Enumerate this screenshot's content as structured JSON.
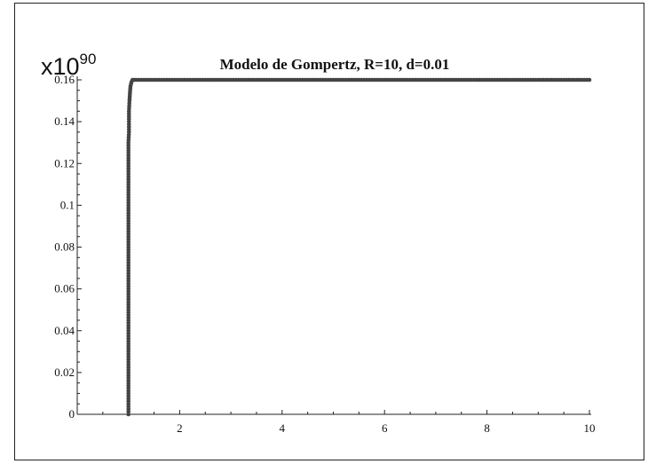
{
  "chart_data": {
    "type": "scatter",
    "title": "Modelo de Gompertz, R=10, d=0.01",
    "y_multiplier": {
      "base": "x10",
      "exponent": "90"
    },
    "xlim": [
      0,
      10
    ],
    "ylim": [
      0,
      0.16
    ],
    "x_ticks": [
      {
        "value": 2,
        "label": "2"
      },
      {
        "value": 4,
        "label": "4"
      },
      {
        "value": 6,
        "label": "6"
      },
      {
        "value": 8,
        "label": "8"
      },
      {
        "value": 10,
        "label": "10"
      }
    ],
    "y_ticks": [
      {
        "value": 0,
        "label": "0"
      },
      {
        "value": 0.02,
        "label": "0.02"
      },
      {
        "value": 0.04,
        "label": "0.04"
      },
      {
        "value": 0.06,
        "label": "0.06"
      },
      {
        "value": 0.08,
        "label": "0.08"
      },
      {
        "value": 0.1,
        "label": "0.1"
      },
      {
        "value": 0.12,
        "label": "0.12"
      },
      {
        "value": 0.14,
        "label": "0.14"
      },
      {
        "value": 0.16,
        "label": "0.16"
      }
    ],
    "series": [
      {
        "color": "#444444",
        "points": [
          [
            1.0,
            0.0
          ],
          [
            1.0,
            0.005
          ],
          [
            1.0,
            0.01
          ],
          [
            1.0,
            0.015
          ],
          [
            1.0,
            0.02
          ],
          [
            1.0,
            0.025
          ],
          [
            1.0,
            0.03
          ],
          [
            1.0,
            0.035
          ],
          [
            1.0,
            0.04
          ],
          [
            1.0,
            0.045
          ],
          [
            1.0,
            0.05
          ],
          [
            1.0,
            0.055
          ],
          [
            1.0,
            0.06
          ],
          [
            1.0,
            0.065
          ],
          [
            1.0,
            0.07
          ],
          [
            1.0,
            0.075
          ],
          [
            1.0,
            0.08
          ],
          [
            1.0,
            0.085
          ],
          [
            1.0,
            0.09
          ],
          [
            1.0,
            0.095
          ],
          [
            1.0,
            0.1
          ],
          [
            1.0,
            0.105
          ],
          [
            1.0,
            0.11
          ],
          [
            1.0,
            0.115
          ],
          [
            1.0,
            0.12
          ],
          [
            1.0,
            0.125
          ],
          [
            1.0,
            0.13
          ],
          [
            1.01,
            0.135
          ],
          [
            1.01,
            0.14
          ],
          [
            1.01,
            0.145
          ],
          [
            1.02,
            0.15
          ],
          [
            1.03,
            0.154
          ],
          [
            1.04,
            0.157
          ],
          [
            1.06,
            0.159
          ],
          [
            1.08,
            0.16
          ],
          [
            1.15,
            0.16
          ],
          [
            1.25,
            0.16
          ],
          [
            1.5,
            0.16
          ],
          [
            2,
            0.16
          ],
          [
            2.5,
            0.16
          ],
          [
            3,
            0.16
          ],
          [
            4,
            0.16
          ],
          [
            5,
            0.16
          ],
          [
            6,
            0.16
          ],
          [
            7,
            0.16
          ],
          [
            8,
            0.16
          ],
          [
            9,
            0.16
          ],
          [
            10,
            0.16
          ]
        ]
      }
    ]
  }
}
